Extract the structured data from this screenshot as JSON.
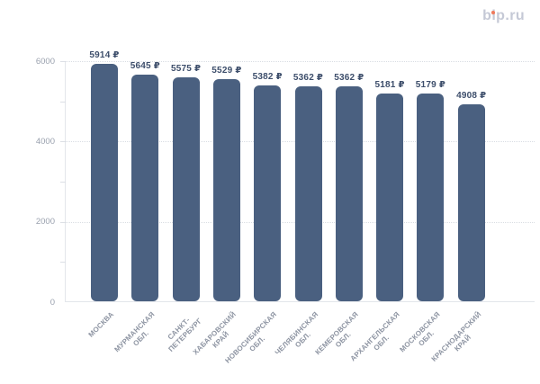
{
  "logo": {
    "text": "bip.ru",
    "color": "#c5c9d6",
    "dot_color": "#ee7a5c"
  },
  "chart_data": {
    "type": "bar",
    "title": "",
    "xlabel": "",
    "ylabel": "",
    "categories": [
      "МОСКВА",
      "МУРМАНСКАЯ ОБЛ.",
      "САНКТ-ПЕТЕРБУРГ",
      "ХАБАРОВСКИЙ КРАЙ",
      "НОВОСИБИРСКАЯ ОБЛ.",
      "ЧЕЛЯБИНСКАЯ ОБЛ.",
      "КЕМЕРОВСКАЯ ОБЛ.",
      "АРХАНГЕЛЬСКАЯ ОБЛ.",
      "МОСКОВСКАЯ ОБЛ.",
      "КРАСНОДАРСКИЙ КРАЙ"
    ],
    "category_lines": [
      [
        "МОСКВА"
      ],
      [
        "МУРМАНСКАЯ",
        "ОБЛ."
      ],
      [
        "САНКТ-",
        "ПЕТЕРБУРГ"
      ],
      [
        "ХАБАРОВСКИЙ",
        "КРАЙ"
      ],
      [
        "НОВОСИБИРСКАЯ",
        "ОБЛ."
      ],
      [
        "ЧЕЛЯБИНСКАЯ",
        "ОБЛ."
      ],
      [
        "КЕМЕРОВСКАЯ",
        "ОБЛ."
      ],
      [
        "АРХАНГЕЛЬСКАЯ",
        "ОБЛ."
      ],
      [
        "МОСКОВСКАЯ",
        "ОБЛ."
      ],
      [
        "КРАСНОДАРСКИЙ",
        "КРАЙ"
      ]
    ],
    "values": [
      5914,
      5645,
      5575,
      5529,
      5382,
      5362,
      5362,
      5181,
      5179,
      4908
    ],
    "value_labels": [
      "5914 ₽",
      "5645 ₽",
      "5575 ₽",
      "5529 ₽",
      "5382 ₽",
      "5362 ₽",
      "5362 ₽",
      "5181 ₽",
      "5179 ₽",
      "4908 ₽"
    ],
    "value_suffix": " ₽",
    "ylim": [
      0,
      6000
    ],
    "ytick_labels": [
      "0",
      "2000",
      "4000",
      "6000"
    ],
    "yticks": [
      0,
      2000,
      4000,
      6000
    ],
    "minor_tick_step": 1000,
    "legend": "none",
    "grid": "horizontal dotted at major ticks",
    "colors": {
      "bar": "#4a6080",
      "value_label": "#3d4e6b",
      "y_axis_label": "#9aa1ae",
      "x_axis_label": "#8d94a2",
      "axis_line": "#e3e6eb",
      "gridline": "#d9dde3"
    }
  }
}
